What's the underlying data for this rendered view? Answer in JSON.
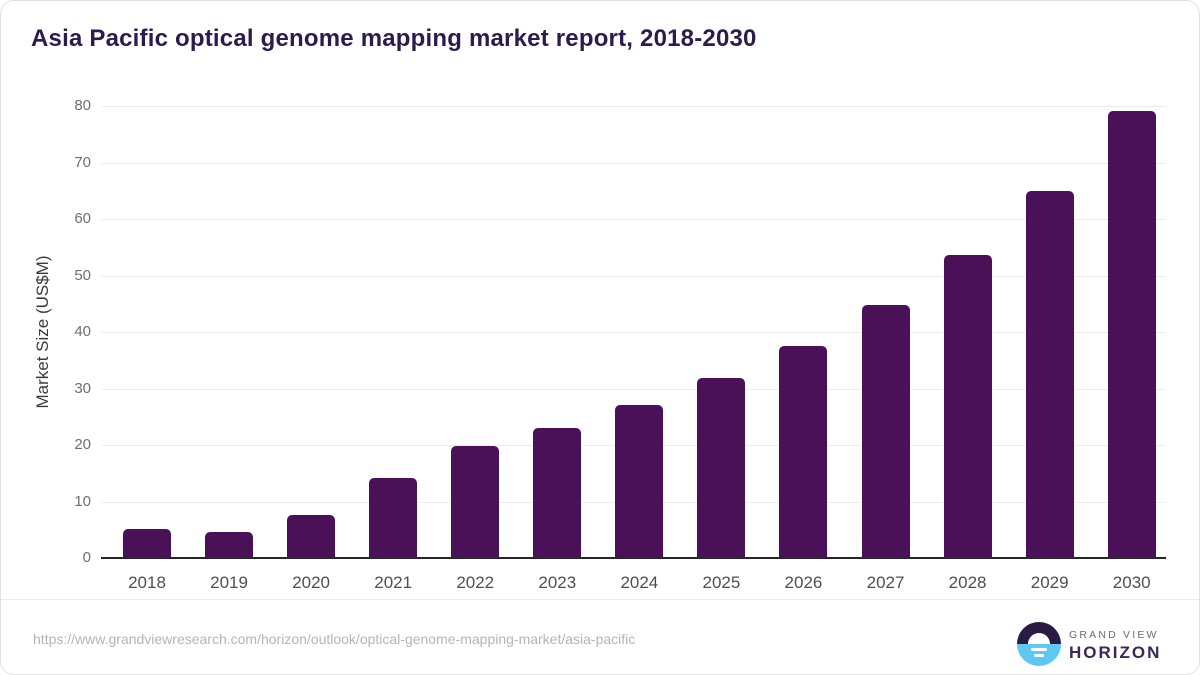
{
  "title": "Asia Pacific optical genome mapping market report, 2018-2030",
  "chart_data": {
    "type": "bar",
    "title": "Asia Pacific optical genome mapping market report, 2018-2030",
    "categories": [
      "2018",
      "2019",
      "2020",
      "2021",
      "2022",
      "2023",
      "2024",
      "2025",
      "2026",
      "2027",
      "2028",
      "2029",
      "2030"
    ],
    "values": [
      5.2,
      4.6,
      7.7,
      14.2,
      19.8,
      23.0,
      27.0,
      31.8,
      37.6,
      44.7,
      53.7,
      64.9,
      79.1
    ],
    "xlabel": "",
    "ylabel": "Market Size (US$M)",
    "ylim": [
      0,
      80
    ],
    "yticks": [
      0,
      10,
      20,
      30,
      40,
      50,
      60,
      70,
      80
    ],
    "grid": true,
    "legend": "none",
    "bar_color": "#4a1158"
  },
  "footer": {
    "url": "https://www.grandviewresearch.com/horizon/outlook/optical-genome-mapping-market/asia-pacific",
    "logo": {
      "brand_top": "GRAND VIEW",
      "brand_bottom": "HORIZON"
    }
  },
  "colors": {
    "bar": "#4a1158",
    "title_text": "#2d1b4e",
    "axis_line": "#262626",
    "gridline": "#ececec",
    "tick_text": "#6e6e6e",
    "url_text": "#b4b4b4",
    "logo_dark": "#2a1b45",
    "logo_blue": "#5fc8f2"
  }
}
